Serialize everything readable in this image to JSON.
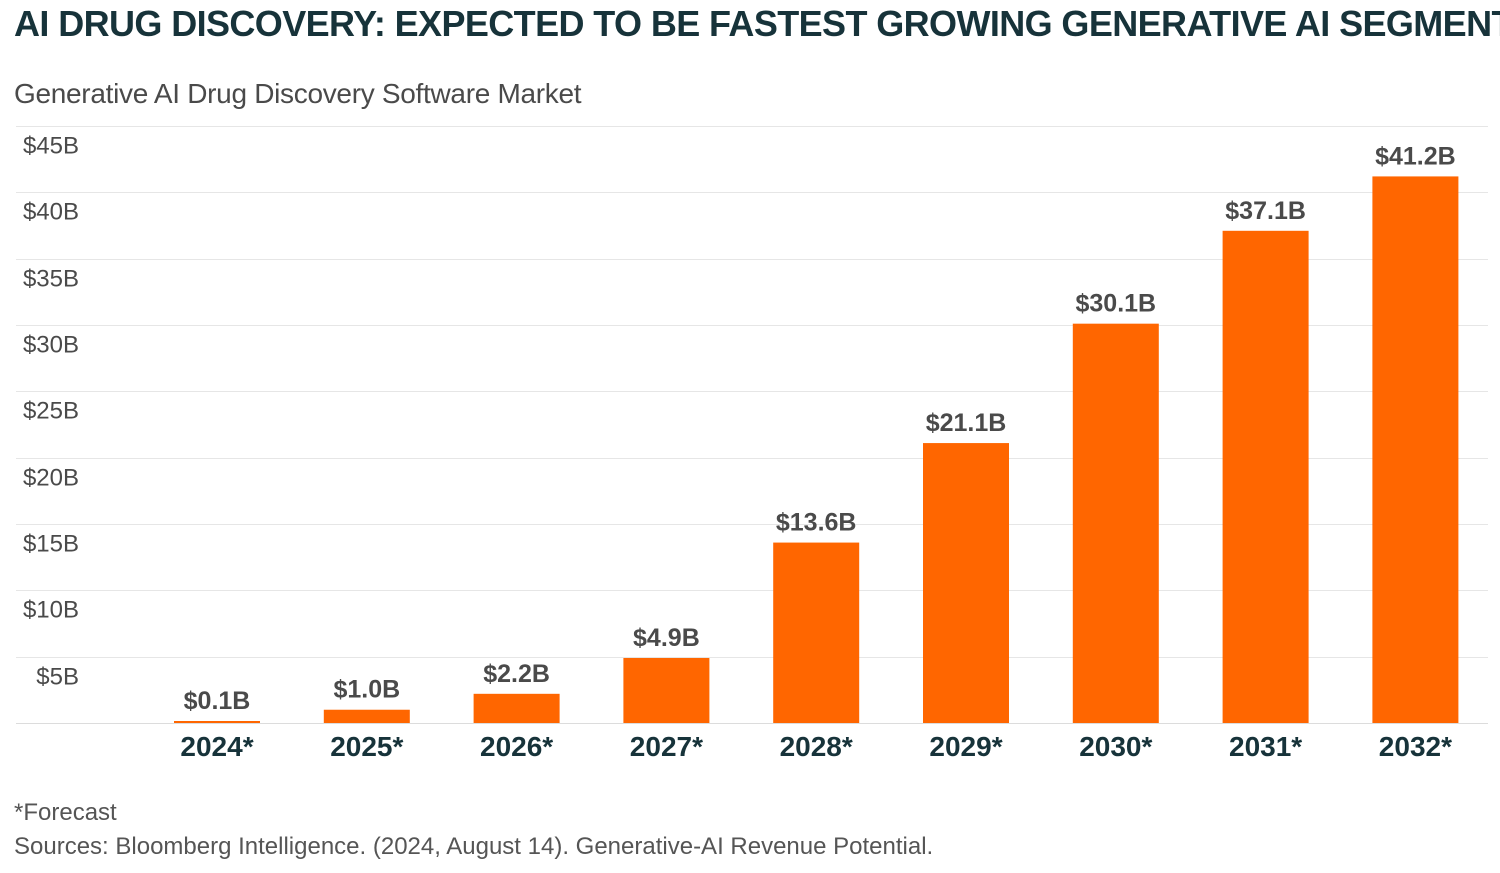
{
  "chart_data": {
    "type": "bar",
    "title": "AI DRUG DISCOVERY: EXPECTED TO BE FASTEST GROWING GENERATIVE AI SEGMENT",
    "subtitle": "Generative AI Drug Discovery Software Market",
    "categories": [
      "2024*",
      "2025*",
      "2026*",
      "2027*",
      "2028*",
      "2029*",
      "2030*",
      "2031*",
      "2032*"
    ],
    "values": [
      0.1,
      1.0,
      2.2,
      4.9,
      13.6,
      21.1,
      30.1,
      37.1,
      41.2
    ],
    "data_labels": [
      "$0.1B",
      "$1.0B",
      "$2.2B",
      "$4.9B",
      "$13.6B",
      "$21.1B",
      "$30.1B",
      "$37.1B",
      "$41.2B"
    ],
    "y_ticks": [
      5,
      10,
      15,
      20,
      25,
      30,
      35,
      40,
      45
    ],
    "y_tick_labels": [
      "$5B",
      "$10B",
      "$15B",
      "$20B",
      "$25B",
      "$30B",
      "$35B",
      "$40B",
      "$45B"
    ],
    "ylim": [
      0,
      45
    ],
    "grid": true,
    "bar_color": "#ff6600",
    "footnote": "*Forecast",
    "source": "Sources: Bloomberg Intelligence. (2024, August 14). Generative-AI Revenue Potential."
  }
}
